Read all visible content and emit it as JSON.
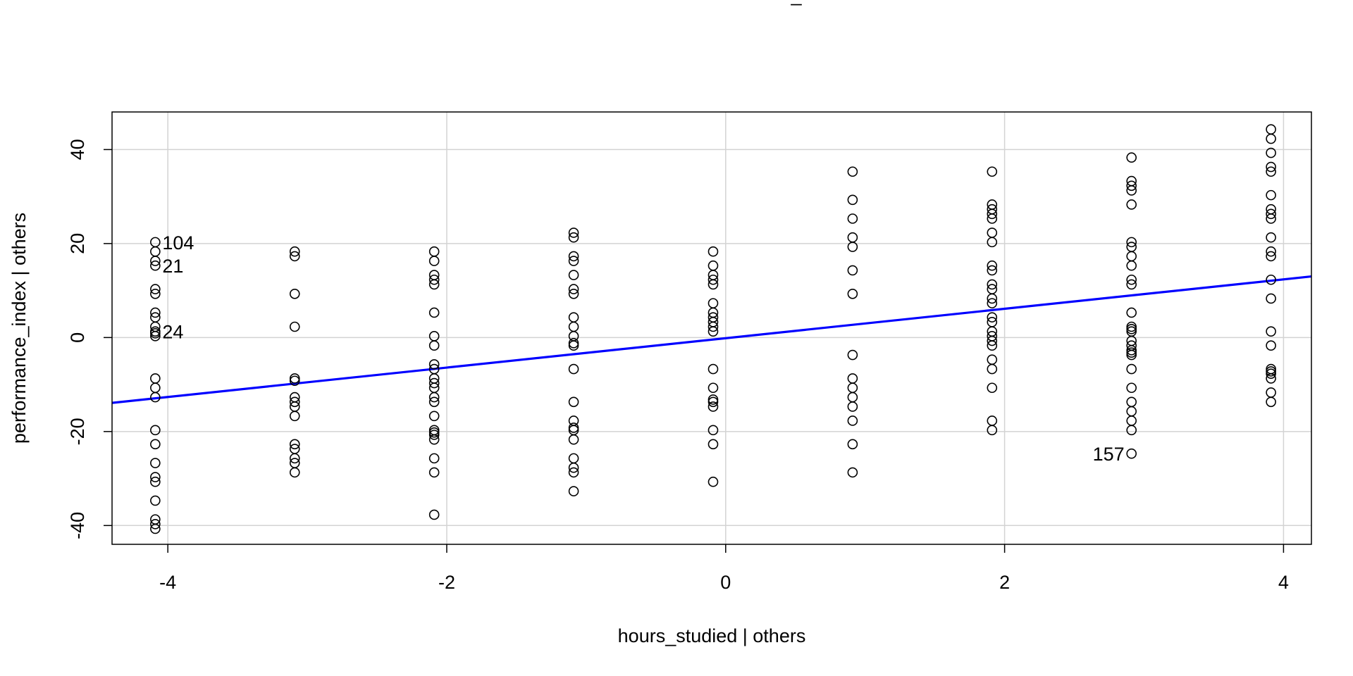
{
  "chart_data": {
    "type": "scatter",
    "title": "_",
    "xlabel": "hours_studied | others",
    "ylabel": "performance_index  | others",
    "xlim": [
      -4.4,
      4.2
    ],
    "ylim": [
      -44,
      48
    ],
    "x_ticks": [
      -4,
      -2,
      0,
      2,
      4
    ],
    "x_tick_labels": [
      "-4",
      "-2",
      "0",
      "2",
      "4"
    ],
    "y_ticks": [
      -40,
      -20,
      0,
      20,
      40
    ],
    "y_tick_labels": [
      "-40",
      "-20",
      "0",
      "20",
      "40"
    ],
    "grid": true,
    "series": [
      {
        "x": [
          -4.09,
          -4.09,
          -4.09,
          -4.09,
          -4.09,
          -4.09,
          -4.09,
          -4.09,
          -4.09,
          -4.09,
          -4.09,
          -4.09,
          -4.09,
          -4.09,
          -4.09,
          -4.09,
          -4.09,
          -4.09,
          -4.09,
          -4.09,
          -4.09,
          -4.09,
          -4.09,
          -4.09,
          -3.09,
          -3.09,
          -3.09,
          -3.09,
          -3.09,
          -3.09,
          -3.09,
          -3.09,
          -3.09,
          -3.09,
          -3.09,
          -3.09,
          -3.09,
          -3.09,
          -3.09,
          -2.09,
          -2.09,
          -2.09,
          -2.09,
          -2.09,
          -2.09,
          -2.09,
          -2.09,
          -2.09,
          -2.09,
          -2.09,
          -2.09,
          -2.09,
          -2.09,
          -2.09,
          -2.09,
          -2.09,
          -2.09,
          -2.09,
          -2.09,
          -2.09,
          -2.09,
          -2.09,
          -1.09,
          -1.09,
          -1.09,
          -1.09,
          -1.09,
          -1.09,
          -1.09,
          -1.09,
          -1.09,
          -1.09,
          -1.09,
          -1.09,
          -1.09,
          -1.09,
          -1.09,
          -1.09,
          -1.09,
          -1.09,
          -1.09,
          -1.09,
          -1.09,
          -1.09,
          -0.09,
          -0.09,
          -0.09,
          -0.09,
          -0.09,
          -0.09,
          -0.09,
          -0.09,
          -0.09,
          -0.09,
          -0.09,
          -0.09,
          -0.09,
          -0.09,
          -0.09,
          -0.09,
          -0.09,
          -0.09,
          -0.09,
          0.91,
          0.91,
          0.91,
          0.91,
          0.91,
          0.91,
          0.91,
          0.91,
          0.91,
          0.91,
          0.91,
          0.91,
          0.91,
          0.91,
          0.91,
          1.91,
          1.91,
          1.91,
          1.91,
          1.91,
          1.91,
          1.91,
          1.91,
          1.91,
          1.91,
          1.91,
          1.91,
          1.91,
          1.91,
          1.91,
          1.91,
          1.91,
          1.91,
          1.91,
          1.91,
          1.91,
          1.91,
          1.91,
          1.91,
          2.91,
          2.91,
          2.91,
          2.91,
          2.91,
          2.91,
          2.91,
          2.91,
          2.91,
          2.91,
          2.91,
          2.91,
          2.91,
          2.91,
          2.91,
          2.91,
          2.91,
          2.91,
          2.91,
          2.91,
          2.91,
          2.91,
          2.91,
          2.91,
          2.91,
          2.91,
          2.91,
          3.91,
          3.91,
          3.91,
          3.91,
          3.91,
          3.91,
          3.91,
          3.91,
          3.91,
          3.91,
          3.91,
          3.91,
          3.91,
          3.91,
          3.91,
          3.91,
          3.91,
          3.91,
          3.91,
          3.91,
          3.91,
          3.91
        ],
        "y": [
          20.3,
          18.3,
          16.3,
          15.3,
          10.3,
          9.3,
          5.3,
          4.3,
          2.3,
          1.3,
          0.3,
          -8.7,
          -10.7,
          -12.7,
          -19.7,
          -22.7,
          -26.7,
          -29.7,
          -30.7,
          -34.7,
          -38.7,
          -39.7,
          -40.7,
          0.9,
          18.3,
          17.3,
          9.3,
          2.3,
          -8.7,
          -9.2,
          -12.7,
          -13.7,
          -14.7,
          -16.7,
          -22.7,
          -23.7,
          -25.7,
          -26.7,
          -28.7,
          18.3,
          16.3,
          13.3,
          12.3,
          11.3,
          5.3,
          0.3,
          -1.7,
          -5.7,
          -6.7,
          -8.7,
          -9.7,
          -10.7,
          -13.7,
          -16.7,
          -19.7,
          -20.7,
          -21.7,
          -25.7,
          -28.7,
          -37.7,
          -12.7,
          -20.2,
          22.3,
          21.3,
          17.3,
          16.3,
          13.3,
          10.3,
          9.3,
          4.3,
          2.3,
          0.3,
          -1.7,
          -6.7,
          -13.7,
          -17.7,
          -19.7,
          -21.7,
          -25.7,
          -27.7,
          -28.7,
          -32.7,
          -1.2,
          -19.2,
          18.3,
          15.3,
          13.3,
          12.3,
          11.3,
          7.3,
          5.3,
          4.3,
          2.3,
          1.3,
          -6.7,
          -10.7,
          -13.7,
          -14.7,
          -19.7,
          -22.7,
          -30.7,
          3.3,
          -13.2,
          35.3,
          29.3,
          25.3,
          21.3,
          19.3,
          14.3,
          9.3,
          -3.7,
          -8.7,
          -10.7,
          -12.7,
          -14.7,
          -17.7,
          -22.7,
          -28.7,
          35.3,
          28.3,
          27.3,
          26.3,
          25.3,
          22.3,
          20.3,
          15.3,
          14.3,
          11.3,
          10.3,
          7.3,
          4.3,
          1.3,
          0.3,
          -1.7,
          -4.7,
          -6.7,
          -10.7,
          -17.7,
          -19.7,
          -0.7,
          8.3,
          3.3,
          38.3,
          33.3,
          32.3,
          31.3,
          28.3,
          20.3,
          19.3,
          17.3,
          15.3,
          12.3,
          11.3,
          5.3,
          2.3,
          1.3,
          -1.7,
          -2.7,
          -3.7,
          -6.7,
          -10.7,
          -13.7,
          -15.7,
          -17.7,
          -19.7,
          -24.7,
          -0.7,
          -3.2,
          1.8,
          44.3,
          42.3,
          39.3,
          36.3,
          35.3,
          30.3,
          27.3,
          25.3,
          21.3,
          18.3,
          17.3,
          12.3,
          8.3,
          1.3,
          -1.7,
          -6.7,
          -7.7,
          -8.7,
          -11.7,
          -13.7,
          26.3,
          -7.2
        ]
      }
    ],
    "fit_line": {
      "x": [
        -4.4,
        4.2
      ],
      "y": [
        -13.9,
        13.0
      ]
    },
    "annotations": [
      {
        "text": "104",
        "x": -4.09,
        "y": 20.3,
        "pos": "right"
      },
      {
        "text": "21",
        "x": -4.09,
        "y": 15.3,
        "pos": "right"
      },
      {
        "text": "24",
        "x": -4.09,
        "y": 1.3,
        "pos": "right"
      },
      {
        "text": "157",
        "x": 2.91,
        "y": -24.7,
        "pos": "left"
      }
    ],
    "colors": {
      "points": "#000000",
      "fit": "#0000ff",
      "grid": "#d3d3d3"
    }
  }
}
